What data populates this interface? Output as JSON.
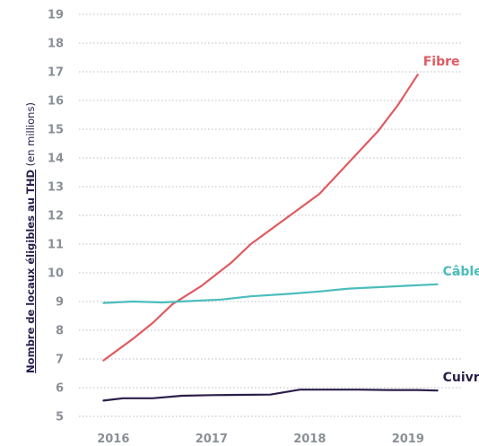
{
  "chart_data": {
    "type": "line",
    "ylabel": {
      "bold": "Nombre de locaux éligibles au THD",
      "normal": " (en millions)"
    },
    "ylim": [
      5,
      19
    ],
    "yticks": [
      "5",
      "6",
      "7",
      "8",
      "9",
      "10",
      "11",
      "12",
      "13",
      "14",
      "15",
      "16",
      "17",
      "18",
      "19"
    ],
    "xticks": [
      "2016",
      "2017",
      "2018",
      "2019"
    ],
    "grid": true,
    "series": [
      {
        "name": "Fibre",
        "color": "#e05a60",
        "x": [
          2015.9,
          2016.2,
          2016.4,
          2016.6,
          2016.9,
          2017.2,
          2017.4,
          2017.8,
          2018.1,
          2018.4,
          2018.7,
          2018.9,
          2019.1
        ],
        "y": [
          6.95,
          7.7,
          8.25,
          8.9,
          9.55,
          10.35,
          11.0,
          12.0,
          12.75,
          13.85,
          14.95,
          15.85,
          16.9
        ]
      },
      {
        "name": "Câble",
        "color": "#4bbdbc",
        "x": [
          2015.9,
          2016.2,
          2016.5,
          2016.8,
          2017.1,
          2017.4,
          2017.8,
          2018.1,
          2018.4,
          2018.7,
          2019.0,
          2019.3
        ],
        "y": [
          8.95,
          9.0,
          8.97,
          9.02,
          9.07,
          9.18,
          9.27,
          9.35,
          9.45,
          9.5,
          9.55,
          9.6
        ]
      },
      {
        "name": "Cuivre",
        "color": "#2b1f4a",
        "x": [
          2015.9,
          2016.1,
          2016.4,
          2016.7,
          2017.0,
          2017.3,
          2017.6,
          2017.9,
          2018.2,
          2018.5,
          2018.8,
          2019.1,
          2019.3
        ],
        "y": [
          5.55,
          5.63,
          5.63,
          5.72,
          5.74,
          5.75,
          5.76,
          5.93,
          5.93,
          5.93,
          5.92,
          5.92,
          5.9
        ]
      }
    ],
    "legend": "inline-end-of-line"
  }
}
